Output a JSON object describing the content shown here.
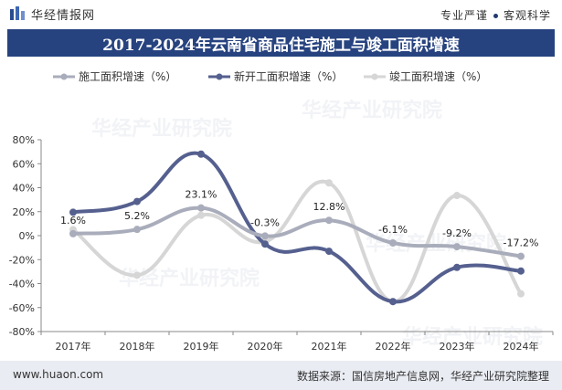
{
  "header": {
    "logo_text": "华经情报网",
    "slogan_left": "专业严谨",
    "slogan_right": "客观科学"
  },
  "title": "2017-2024年云南省商品住宅施工与竣工面积增速",
  "footer": {
    "left": "www.huaon.com",
    "right": "数据来源：国信房地产信息网，华经产业研究院整理"
  },
  "watermark": "华经产业研究院",
  "chart_data": {
    "type": "line",
    "categories": [
      "2017年",
      "2018年",
      "2019年",
      "2020年",
      "2021年",
      "2022年",
      "2023年",
      "2024年"
    ],
    "series": [
      {
        "name": "施工面积增速（%）",
        "values": [
          1.6,
          5.2,
          23.1,
          -0.3,
          12.8,
          -6.1,
          -9.2,
          -17.2
        ],
        "color": "#a9adbb",
        "labels": [
          "1.6%",
          "5.2%",
          "23.1%",
          "-0.3%",
          "12.8%",
          "-6.1%",
          "-9.2%",
          "-17.2%"
        ]
      },
      {
        "name": "新开工面积增速（%）",
        "values": [
          19.5,
          28.5,
          68.0,
          -7.0,
          -13.0,
          -55.0,
          -26.5,
          -29.5
        ],
        "color": "#55608f"
      },
      {
        "name": "竣工面积增速（%）",
        "values": [
          5.0,
          -33.0,
          17.0,
          -5.0,
          44.0,
          -55.0,
          33.5,
          -48.5
        ],
        "color": "#d6d6d6"
      }
    ],
    "ylim": [
      -80,
      80
    ],
    "yticks": [
      -80,
      -60,
      -40,
      -20,
      0,
      20,
      40,
      60,
      80
    ],
    "ytick_labels": [
      "-80%",
      "-60%",
      "-40%",
      "-20%",
      "0%",
      "20%",
      "40%",
      "60%",
      "80%"
    ],
    "legend_position": "top",
    "grid": false
  }
}
